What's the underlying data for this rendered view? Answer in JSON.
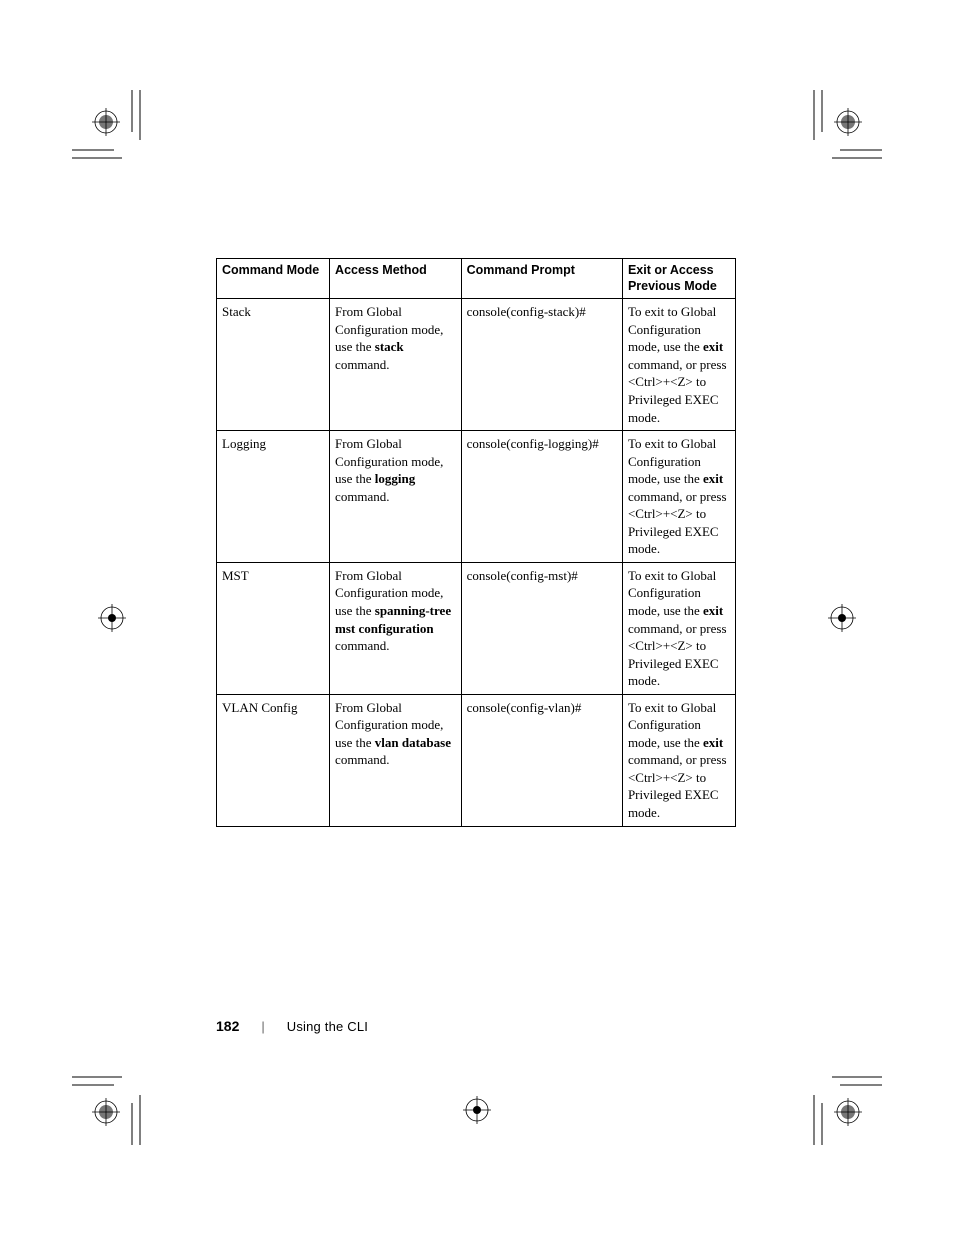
{
  "table": {
    "headers": {
      "mode": "Command Mode",
      "access": "Access Method",
      "prompt": "Command Prompt",
      "exit": "Exit or Access Previous Mode"
    },
    "rows": [
      {
        "mode": "Stack",
        "access_pre": "From Global Configuration mode, use the ",
        "access_bold": "stack",
        "access_post": " command.",
        "prompt": "console(config-stack)#",
        "exit_pre": "To exit to Global Configuration mode, use the ",
        "exit_bold": "exit",
        "exit_mid": " command, or press <Ctrl>+<Z> to Privileged EXEC mode.",
        "exit_post": ""
      },
      {
        "mode": "Logging",
        "access_pre": "From Global Configuration mode, use the ",
        "access_bold": "logging",
        "access_post": " command.",
        "prompt": "console(config-logging)#",
        "exit_pre": "To exit to Global Configuration mode, use the ",
        "exit_bold": "exit",
        "exit_mid": " command, or press <Ctrl>+<Z> to Privileged EXEC mode.",
        "exit_post": ""
      },
      {
        "mode": "MST",
        "access_pre": "From Global Configuration mode, use the ",
        "access_bold": "spanning-tree mst configuration",
        "access_post": " command.",
        "prompt": "console(config-mst)#",
        "exit_pre": "To exit to Global Configuration mode, use the ",
        "exit_bold": "exit",
        "exit_mid": " command, or press <Ctrl>+<Z> to Privileged EXEC mode.",
        "exit_post": ""
      },
      {
        "mode": "VLAN Config",
        "access_pre": "From Global Configuration mode, use the ",
        "access_bold": "vlan database",
        "access_post": " command.",
        "prompt": "console(config-vlan)#",
        "exit_pre": "To exit to Global Configuration mode, use the ",
        "exit_bold": "exit",
        "exit_mid": " command, or press <Ctrl>+<Z> to Privileged EXEC mode.",
        "exit_post": ""
      }
    ]
  },
  "footer": {
    "page": "182",
    "separator": "|",
    "section": "Using the CLI"
  },
  "style": {
    "text_color": "#000000",
    "border_color": "#000000",
    "background": "#ffffff"
  }
}
